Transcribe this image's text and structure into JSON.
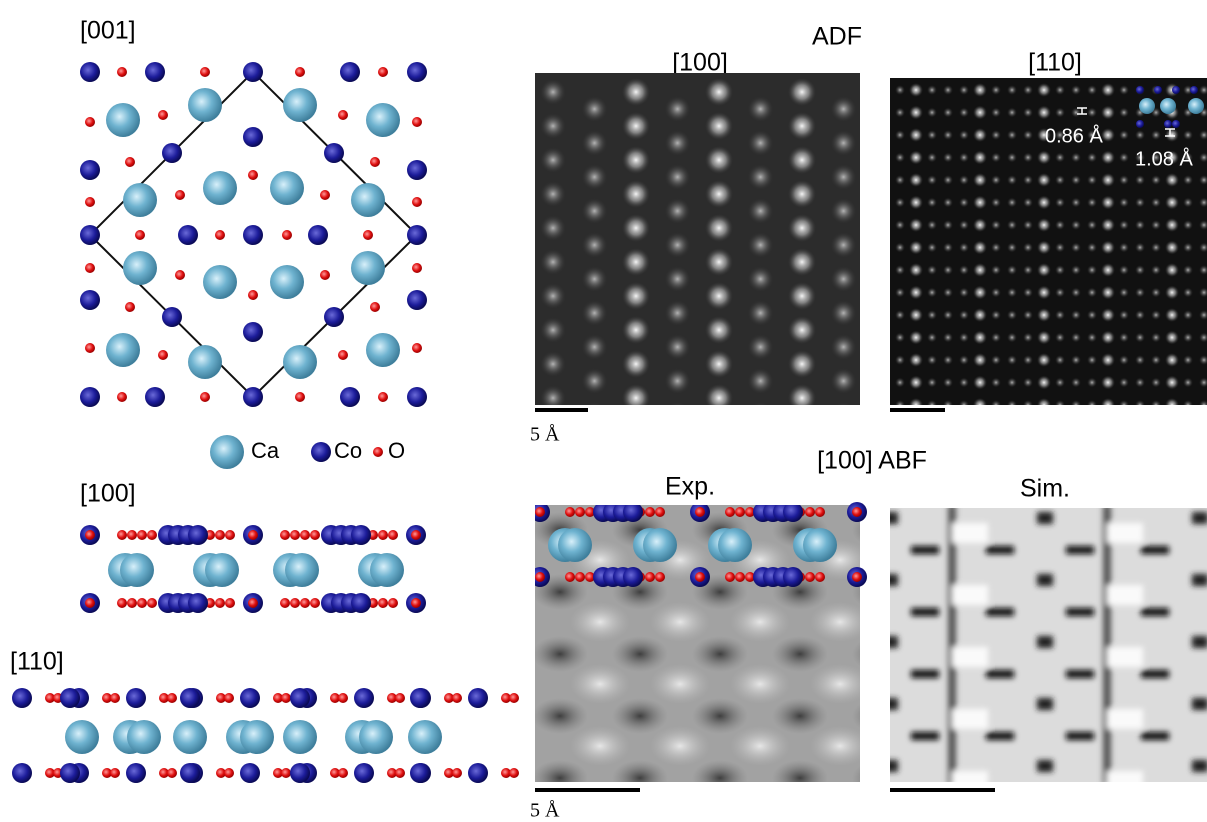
{
  "structure": {
    "top_view": {
      "label": "[001]"
    },
    "legend": [
      {
        "label": "Ca"
      },
      {
        "label": "Co"
      },
      {
        "label": "O"
      }
    ],
    "side_view_100": {
      "label": "[100]"
    },
    "side_view_110": {
      "label": "[110]"
    }
  },
  "adf": {
    "title": "ADF",
    "panels": [
      {
        "label": "[100]",
        "scale_bar": "5 Å"
      },
      {
        "label": "[110]",
        "annotations": [
          "0.86 Å",
          "1.08 Å"
        ]
      }
    ]
  },
  "abf": {
    "title": "[100] ABF",
    "panels": [
      {
        "label": "Exp.",
        "scale_bar": "5 Å"
      },
      {
        "label": "Sim."
      }
    ]
  }
}
